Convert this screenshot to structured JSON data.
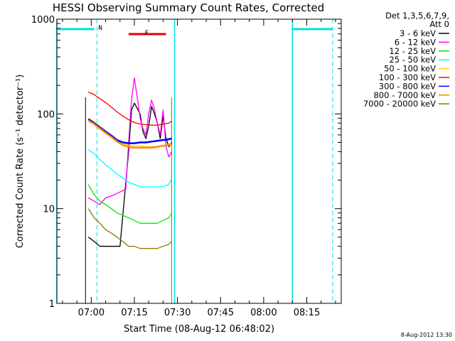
{
  "chart_data": {
    "type": "line",
    "title": "HESSI Observing Summary Count Rates, Corrected",
    "xlabel": "Start Time (08-Aug-12 06:48:02)",
    "ylabel": "Corrected Count Rate (s⁻¹ detector⁻¹)",
    "y_scale": "log",
    "ylim": [
      1,
      1000
    ],
    "xlim": [
      "06:48:02",
      "08:27:00"
    ],
    "x_ticks": [
      "07:00",
      "07:15",
      "07:30",
      "07:45",
      "08:00",
      "08:15"
    ],
    "y_ticks": [
      "1",
      "10",
      "100",
      "1000"
    ],
    "grid": false,
    "legend_position": "top-right",
    "legend_header": [
      "Det 1,3,5,6,7,9,",
      "Att 0"
    ],
    "footer_date": "8-Aug-2012 13:30",
    "flags": [
      {
        "label": "N",
        "color": "#00e0e0",
        "spans": [
          [
            "06:48",
            "07:01"
          ],
          [
            "08:10",
            "08:24"
          ]
        ]
      },
      {
        "label": "F",
        "color": "#e00000",
        "spans": [
          [
            "07:13",
            "07:26"
          ]
        ]
      }
    ],
    "markers": {
      "solid_cyan": [
        "06:48",
        "07:29",
        "08:10"
      ],
      "dashed_cyan": [
        "07:02",
        "08:24"
      ]
    },
    "data_start": "06:58",
    "data_end": "07:28",
    "series": [
      {
        "name": "3 - 6 keV",
        "color": "#000000",
        "x": [
          "06:59",
          "07:01",
          "07:03",
          "07:05",
          "07:08",
          "07:10",
          "07:13",
          "07:14",
          "07:15",
          "07:17",
          "07:18",
          "07:19",
          "07:20",
          "07:21",
          "07:22",
          "07:23",
          "07:24",
          "07:25",
          "07:26",
          "07:27",
          "07:28"
        ],
        "y": [
          5,
          4.5,
          4,
          4,
          4,
          4,
          40,
          110,
          130,
          100,
          65,
          55,
          75,
          120,
          100,
          80,
          55,
          95,
          55,
          45,
          50
        ]
      },
      {
        "name": "6 - 12 keV",
        "color": "#ff00ff",
        "x": [
          "06:59",
          "07:01",
          "07:03",
          "07:05",
          "07:08",
          "07:10",
          "07:12",
          "07:13",
          "07:14",
          "07:15",
          "07:16",
          "07:17",
          "07:18",
          "07:19",
          "07:20",
          "07:21",
          "07:22",
          "07:23",
          "07:24",
          "07:25",
          "07:26",
          "07:27",
          "07:28"
        ],
        "y": [
          13,
          12,
          11,
          13,
          14,
          15,
          16,
          50,
          140,
          240,
          150,
          90,
          70,
          60,
          100,
          140,
          110,
          80,
          60,
          110,
          45,
          35,
          40
        ]
      },
      {
        "name": "12 - 25 keV",
        "color": "#00ee00",
        "x": [
          "06:59",
          "07:01",
          "07:03",
          "07:05",
          "07:07",
          "07:09",
          "07:11",
          "07:13",
          "07:15",
          "07:17",
          "07:19",
          "07:21",
          "07:23",
          "07:25",
          "07:27",
          "07:28"
        ],
        "y": [
          18,
          14,
          12,
          11,
          10,
          9,
          8.5,
          8,
          7.5,
          7,
          7,
          7,
          7,
          7.5,
          8,
          9
        ]
      },
      {
        "name": "25 - 50 keV",
        "color": "#00ffff",
        "x": [
          "06:59",
          "07:01",
          "07:03",
          "07:05",
          "07:07",
          "07:09",
          "07:11",
          "07:13",
          "07:15",
          "07:17",
          "07:19",
          "07:21",
          "07:23",
          "07:25",
          "07:27",
          "07:28"
        ],
        "y": [
          42,
          38,
          33,
          29,
          26,
          23,
          21,
          19,
          18,
          17,
          17,
          17,
          17,
          17,
          18,
          21
        ]
      },
      {
        "name": "50 - 100 keV",
        "color": "#ffd700",
        "x": [
          "06:59",
          "07:01",
          "07:03",
          "07:05",
          "07:07",
          "07:09",
          "07:11",
          "07:13",
          "07:15",
          "07:17",
          "07:19",
          "07:21",
          "07:23",
          "07:25",
          "07:27",
          "07:28"
        ],
        "y": [
          90,
          82,
          74,
          66,
          60,
          53,
          49,
          47,
          46,
          46,
          45,
          45,
          45,
          46,
          47,
          48
        ]
      },
      {
        "name": "100 - 300 keV",
        "color": "#ff0000",
        "x": [
          "06:59",
          "07:01",
          "07:03",
          "07:05",
          "07:07",
          "07:09",
          "07:11",
          "07:13",
          "07:15",
          "07:17",
          "07:19",
          "07:21",
          "07:23",
          "07:25",
          "07:27",
          "07:28"
        ],
        "y": [
          170,
          160,
          145,
          132,
          118,
          105,
          95,
          87,
          81,
          78,
          77,
          76,
          76,
          78,
          80,
          84
        ]
      },
      {
        "name": "300 - 800 keV",
        "color": "#0000ff",
        "x": [
          "06:59",
          "07:01",
          "07:03",
          "07:05",
          "07:07",
          "07:09",
          "07:11",
          "07:13",
          "07:15",
          "07:17",
          "07:19",
          "07:21",
          "07:23",
          "07:25",
          "07:27",
          "07:28"
        ],
        "y": [
          88,
          80,
          72,
          65,
          59,
          53,
          50,
          49,
          49,
          50,
          50,
          51,
          52,
          53,
          54,
          55
        ]
      },
      {
        "name": "800 - 7000 keV",
        "color": "#ff8c00",
        "x": [
          "06:59",
          "07:01",
          "07:03",
          "07:05",
          "07:07",
          "07:09",
          "07:11",
          "07:13",
          "07:15",
          "07:17",
          "07:19",
          "07:21",
          "07:23",
          "07:25",
          "07:27",
          "07:28"
        ],
        "y": [
          85,
          78,
          70,
          63,
          57,
          51,
          47,
          45,
          44,
          44,
          44,
          44,
          45,
          46,
          47,
          48
        ]
      },
      {
        "name": "7000 - 20000 keV",
        "color": "#8b7d00",
        "x": [
          "06:59",
          "07:01",
          "07:03",
          "07:05",
          "07:07",
          "07:09",
          "07:11",
          "07:13",
          "07:15",
          "07:17",
          "07:19",
          "07:21",
          "07:23",
          "07:25",
          "07:27",
          "07:28"
        ],
        "y": [
          10,
          8,
          7,
          6,
          5.5,
          5,
          4.5,
          4,
          4,
          3.8,
          3.8,
          3.8,
          3.8,
          4,
          4.2,
          4.5
        ]
      }
    ]
  }
}
